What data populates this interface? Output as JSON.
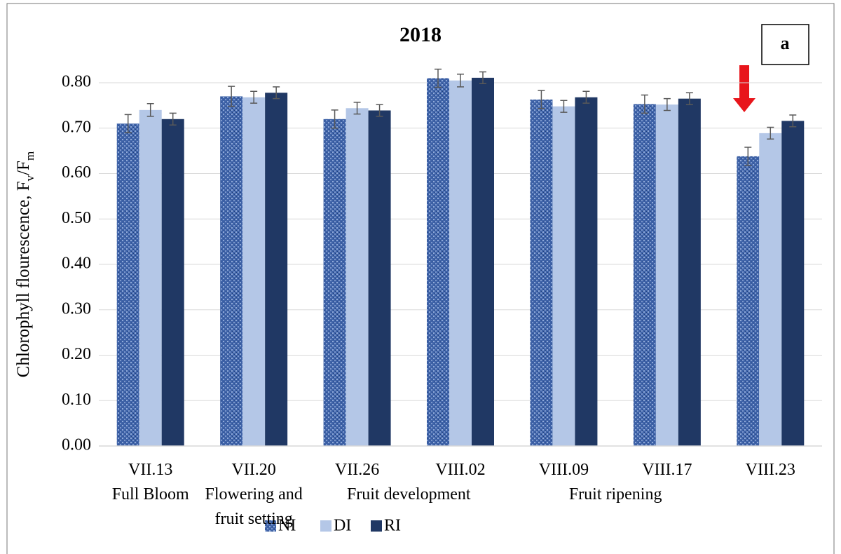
{
  "chart_data": {
    "type": "bar",
    "title": "2018",
    "panel_label": "a",
    "ylabel_parts": [
      "Chlorophyll flourescence, F",
      "v",
      "/F",
      "m"
    ],
    "categories": [
      "VII.13",
      "VII.20",
      "VII.26",
      "VIII.02",
      "VIII.09",
      "VIII.17",
      "VIII.23"
    ],
    "phases": [
      "Full Bloom",
      "Flowering and fruit setting",
      "Fruit development",
      "Fruit ripening"
    ],
    "series": [
      {
        "name": "NI",
        "color": "#3f63a8",
        "pattern": true,
        "values": [
          0.71,
          0.77,
          0.72,
          0.81,
          0.763,
          0.753,
          0.638
        ],
        "errors": [
          0.02,
          0.022,
          0.02,
          0.02,
          0.02,
          0.02,
          0.02
        ]
      },
      {
        "name": "DI",
        "color": "#b4c7e7",
        "values": [
          0.74,
          0.768,
          0.744,
          0.805,
          0.748,
          0.752,
          0.689
        ],
        "errors": [
          0.014,
          0.013,
          0.013,
          0.014,
          0.013,
          0.013,
          0.013
        ]
      },
      {
        "name": "RI",
        "color": "#203864",
        "values": [
          0.72,
          0.778,
          0.739,
          0.811,
          0.768,
          0.765,
          0.716
        ],
        "errors": [
          0.013,
          0.013,
          0.013,
          0.013,
          0.013,
          0.013,
          0.013
        ]
      }
    ],
    "ylim": [
      0,
      0.8
    ],
    "yticks": [
      {
        "value": 0,
        "label": "0.00"
      },
      {
        "value": 0.1,
        "label": "0.10"
      },
      {
        "value": 0.2,
        "label": "0.20"
      },
      {
        "value": 0.3,
        "label": "0.30"
      },
      {
        "value": 0.4,
        "label": "0.40"
      },
      {
        "value": 0.5,
        "label": "0.50"
      },
      {
        "value": 0.6,
        "label": "0.60"
      },
      {
        "value": 0.7,
        "label": "0.70"
      },
      {
        "value": 0.8,
        "label": "0.80"
      }
    ],
    "grid": true
  }
}
